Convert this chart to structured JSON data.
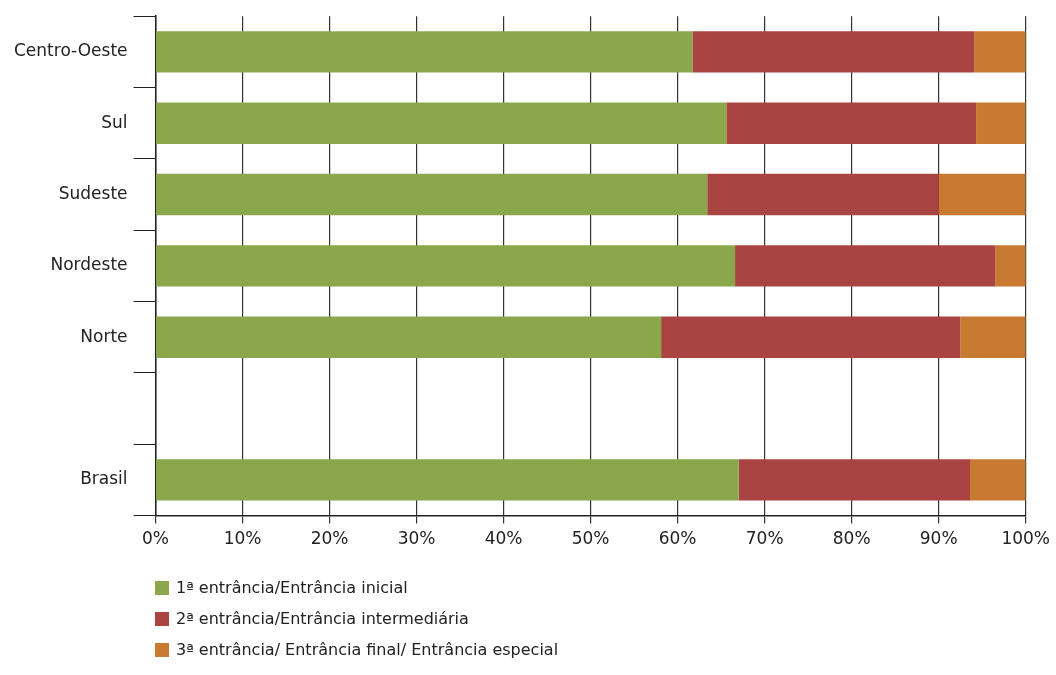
{
  "chart_data": {
    "type": "bar",
    "orientation": "horizontal",
    "stacked": true,
    "grid": "x",
    "legend": "bottom",
    "categories": [
      "Centro-Oeste",
      "Sul",
      "Sudeste",
      "Nordeste",
      "Norte",
      null,
      "Brasil"
    ],
    "series": [
      {
        "name": "1ª entrância/Entrância inicial",
        "color": "#8aa84b",
        "values": [
          61.7,
          65.6,
          63.4,
          66.6,
          58.1,
          null,
          67.0
        ]
      },
      {
        "name": "2ª entrância/Entrância intermediária",
        "color": "#a94442",
        "values": [
          32.4,
          28.7,
          26.6,
          29.9,
          34.4,
          null,
          26.6
        ]
      },
      {
        "name": "3ª entrância/ Entrância final/ Entrância especial",
        "color": "#c87a30",
        "values": [
          5.9,
          5.7,
          10.0,
          3.5,
          7.5,
          null,
          6.4
        ]
      }
    ],
    "xlim": [
      0,
      100
    ],
    "xticks": [
      {
        "value": 0,
        "label": "0%"
      },
      {
        "value": 10,
        "label": "10%"
      },
      {
        "value": 20,
        "label": "20%"
      },
      {
        "value": 30,
        "label": "30%"
      },
      {
        "value": 40,
        "label": "40%"
      },
      {
        "value": 50,
        "label": "50%"
      },
      {
        "value": 60,
        "label": "60%"
      },
      {
        "value": 70,
        "label": "70%"
      },
      {
        "value": 80,
        "label": "80%"
      },
      {
        "value": 90,
        "label": "90%"
      },
      {
        "value": 100,
        "label": "100%"
      }
    ]
  }
}
